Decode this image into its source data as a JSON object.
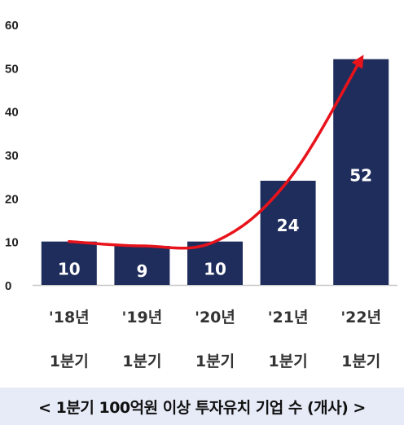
{
  "chart_data": {
    "type": "bar",
    "title": "",
    "xlabel": "",
    "ylabel": "",
    "ylim": [
      0,
      60
    ],
    "yticks": [
      0,
      10,
      20,
      30,
      40,
      50,
      60
    ],
    "grid": false,
    "categories": [
      {
        "line1": "'18년",
        "line2": "1분기"
      },
      {
        "line1": "'19년",
        "line2": "1분기"
      },
      {
        "line1": "'20년",
        "line2": "1분기"
      },
      {
        "line1": "'21년",
        "line2": "1분기"
      },
      {
        "line1": "'22년",
        "line2": "1분기"
      }
    ],
    "series": [
      {
        "type": "bar",
        "values": [
          10,
          9,
          10,
          24,
          52
        ],
        "color": "#1f2d5c",
        "data_labels": [
          "10",
          "9",
          "10",
          "24",
          "52"
        ]
      },
      {
        "type": "line",
        "values": [
          10,
          9,
          10,
          24,
          52
        ],
        "color": "#e8131b",
        "arrow_end": true
      }
    ]
  },
  "caption": {
    "text": "< 1분기 100억원 이상 투자유치 기업 수 (개사) >",
    "background": "#e6ebf7"
  }
}
